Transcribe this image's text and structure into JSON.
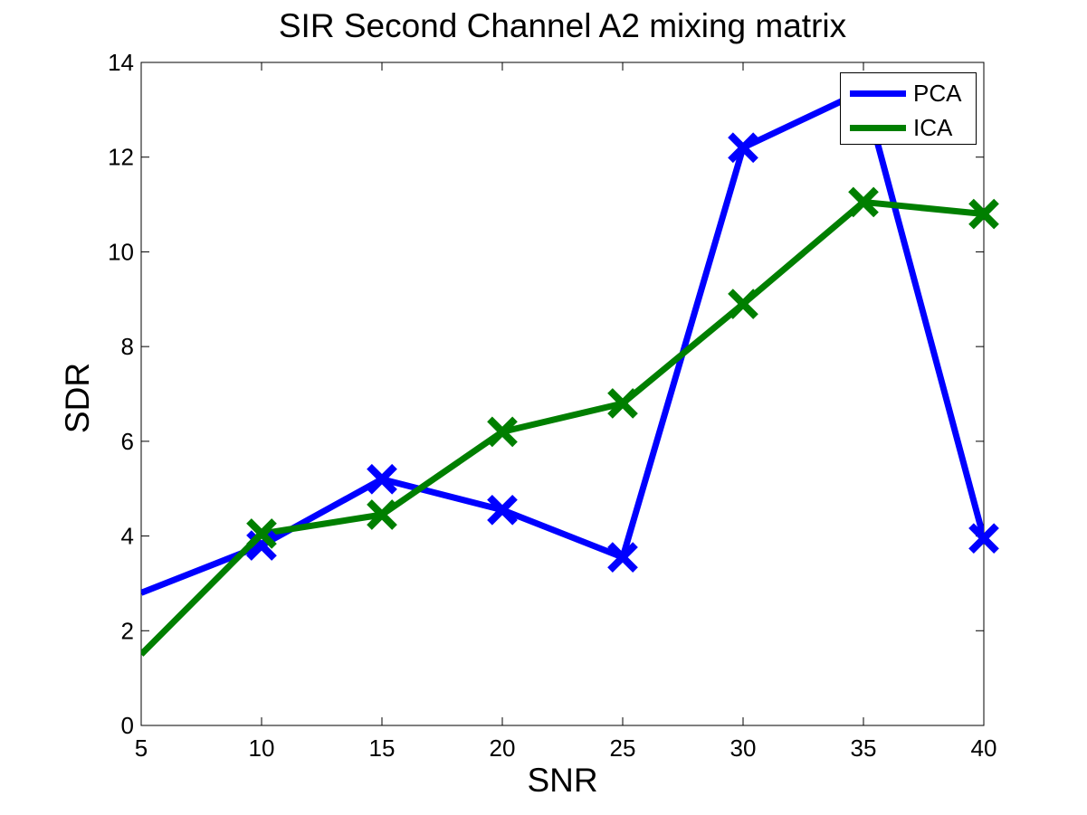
{
  "chart_data": {
    "type": "line",
    "title": "SIR Second Channel A2 mixing matrix",
    "xlabel": "SNR",
    "ylabel": "SDR",
    "xlim": [
      5,
      40
    ],
    "ylim": [
      0,
      14
    ],
    "xticks": [
      5,
      10,
      15,
      20,
      25,
      30,
      35,
      40
    ],
    "yticks": [
      0,
      2,
      4,
      6,
      8,
      10,
      12,
      14
    ],
    "grid": false,
    "legend_position": "top-right",
    "series": [
      {
        "name": "PCA",
        "color": "#0000ff",
        "marker": "x",
        "x": [
          5,
          10,
          15,
          20,
          25,
          30,
          35,
          40
        ],
        "y": [
          2.8,
          3.8,
          5.2,
          4.55,
          3.55,
          12.2,
          13.4,
          3.95
        ]
      },
      {
        "name": "ICA",
        "color": "#007f00",
        "marker": "x",
        "x": [
          5,
          10,
          15,
          20,
          25,
          30,
          35,
          40
        ],
        "y": [
          1.5,
          4.05,
          4.45,
          6.2,
          6.8,
          8.9,
          11.05,
          10.8
        ]
      }
    ]
  }
}
